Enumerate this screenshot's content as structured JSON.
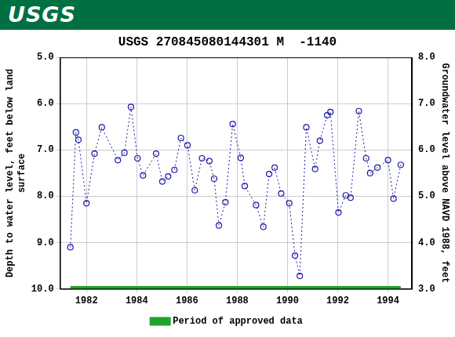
{
  "header": {
    "logo_text": "USGS"
  },
  "chart_data": {
    "type": "line",
    "title": "USGS 270845080144301 M  -1140",
    "y_label": [
      "Depth to water level, feet below land",
      "surface"
    ],
    "y2_label": "Groundwater level above NAVD 1988, feet",
    "x": [
      1981.36,
      1981.58,
      1981.68,
      1982.0,
      1982.32,
      1982.61,
      1983.25,
      1983.51,
      1983.77,
      1984.03,
      1984.25,
      1984.77,
      1985.02,
      1985.25,
      1985.5,
      1985.76,
      1986.02,
      1986.31,
      1986.6,
      1986.89,
      1987.08,
      1987.27,
      1987.53,
      1987.82,
      1988.14,
      1988.3,
      1988.75,
      1989.04,
      1989.27,
      1989.49,
      1989.75,
      1990.07,
      1990.3,
      1990.49,
      1990.75,
      1991.1,
      1991.29,
      1991.58,
      1991.71,
      1992.03,
      1992.32,
      1992.51,
      1992.84,
      1993.13,
      1993.29,
      1993.58,
      1994.0,
      1994.22,
      1994.51
    ],
    "values": [
      9.1,
      6.62,
      6.78,
      8.15,
      7.08,
      6.51,
      7.22,
      7.06,
      6.07,
      7.18,
      7.55,
      7.08,
      7.68,
      7.57,
      7.43,
      6.74,
      6.9,
      7.87,
      7.18,
      7.24,
      7.62,
      8.63,
      8.13,
      6.44,
      7.17,
      7.78,
      8.19,
      8.66,
      7.52,
      7.38,
      7.94,
      8.15,
      9.28,
      9.72,
      6.51,
      7.41,
      6.8,
      6.25,
      6.18,
      8.35,
      7.98,
      8.03,
      6.16,
      7.18,
      7.5,
      7.38,
      7.22,
      8.05,
      7.32
    ],
    "color": "#1a1aa6",
    "marker": "circle",
    "line_style": "dotted",
    "xlim": [
      1980.95,
      1994.95
    ],
    "xticks": [
      1982,
      1984,
      1986,
      1988,
      1990,
      1992,
      1994
    ],
    "ylim": [
      10,
      5
    ],
    "yticks": [
      {
        "value": 5,
        "label": "5.0"
      },
      {
        "value": 6,
        "label": "6.0"
      },
      {
        "value": 7,
        "label": "7.0"
      },
      {
        "value": 8,
        "label": "8.0"
      },
      {
        "value": 9,
        "label": "9.0"
      },
      {
        "value": 10,
        "label": "10.0"
      }
    ],
    "y2lim": [
      3,
      8
    ],
    "y2ticks": [
      {
        "value": 3,
        "label": "3.0"
      },
      {
        "value": 4,
        "label": "4.0"
      },
      {
        "value": 5,
        "label": "5.0"
      },
      {
        "value": 6,
        "label": "6.0"
      },
      {
        "value": 7,
        "label": "7.0"
      },
      {
        "value": 8,
        "label": "8.0"
      }
    ],
    "grid": true,
    "legend": "bottom",
    "approved_period": {
      "name": "Period of approved data",
      "color": "#1fa32a",
      "x": [
        1981.36,
        1994.51
      ]
    }
  }
}
